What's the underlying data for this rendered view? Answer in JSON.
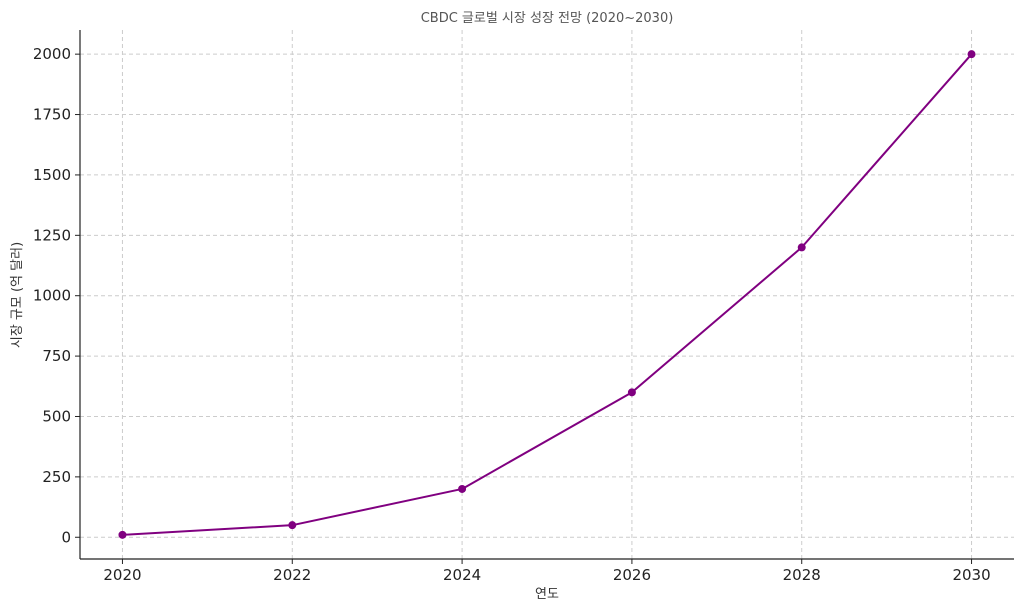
{
  "chart_data": {
    "type": "line",
    "title": "CBDC 글로벌 시장 성장 전망 (2020~2030)",
    "xlabel": "연도",
    "ylabel": "시장 규모 (억 달러)",
    "x": [
      2020,
      2022,
      2024,
      2026,
      2028,
      2030
    ],
    "series": [
      {
        "values": [
          10,
          50,
          200,
          600,
          1200,
          2000
        ]
      }
    ],
    "xlim": [
      2019.5,
      2030.5
    ],
    "ylim": [
      -90,
      2100
    ],
    "xticks": [
      "2020",
      "2022",
      "2024",
      "2026",
      "2028",
      "2030"
    ],
    "yticks": [
      "0",
      "250",
      "500",
      "750",
      "1000",
      "1250",
      "1500",
      "1750",
      "2000"
    ],
    "ytick_values": [
      0,
      250,
      500,
      750,
      1000,
      1250,
      1500,
      1750,
      2000
    ],
    "grid": true,
    "line_color": "#800080",
    "marker": "circle"
  }
}
